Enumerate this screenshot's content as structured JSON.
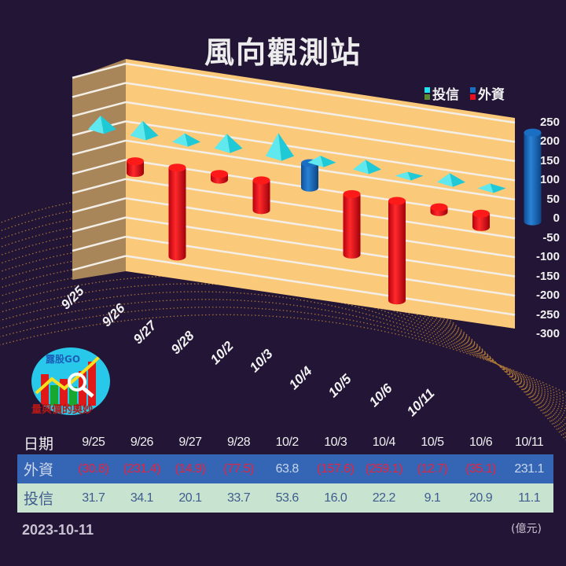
{
  "title": "風向觀測站",
  "legend": [
    {
      "label": "投信",
      "colors": [
        "#22e2ee",
        "#5a8a32"
      ]
    },
    {
      "label": "外資",
      "colors": [
        "#1a6fc4",
        "#e8101c"
      ]
    }
  ],
  "logo": {
    "name": "露股GO",
    "slogan": "量與價的奧妙"
  },
  "date": "2023-10-11",
  "unit": "(億元)",
  "table": {
    "header_label": "日期",
    "dates": [
      "9/25",
      "9/26",
      "9/27",
      "9/28",
      "10/2",
      "10/3",
      "10/4",
      "10/5",
      "10/6",
      "10/11"
    ],
    "rows": [
      {
        "label": "外資",
        "values": [
          "(30.8)",
          "(231.4)",
          "(14.9)",
          "(77.5)",
          "63.8",
          "(157.6)",
          "(259.1)",
          "(12.7)",
          "(35.1)",
          "231.1"
        ]
      },
      {
        "label": "投信",
        "values": [
          "31.7",
          "34.1",
          "20.1",
          "33.7",
          "53.6",
          "16.0",
          "22.2",
          "9.1",
          "20.9",
          "11.1"
        ]
      }
    ]
  },
  "colors": {
    "background": "#221535",
    "wall": "#fbc97a",
    "side_wall": "#a8865a",
    "foreign_positive": "#1a6fc4",
    "foreign_negative": "#e8101c",
    "trust": "#22e2ee",
    "table_foreign_row": "#3566b5",
    "table_trust_row": "#c8e3cf"
  },
  "chart_data": {
    "type": "bar",
    "title": "風向觀測站",
    "categories": [
      "9/25",
      "9/26",
      "9/27",
      "9/28",
      "10/2",
      "10/3",
      "10/4",
      "10/5",
      "10/6",
      "10/11"
    ],
    "series": [
      {
        "name": "外資",
        "shape": "cylinder",
        "values": [
          -30.8,
          -231.4,
          -14.9,
          -77.5,
          63.8,
          -157.6,
          -259.1,
          -12.7,
          -35.1,
          231.1
        ]
      },
      {
        "name": "投信",
        "shape": "pyramid",
        "values": [
          31.7,
          34.1,
          20.1,
          33.7,
          53.6,
          16.0,
          22.2,
          9.1,
          20.9,
          11.1
        ]
      }
    ],
    "yticks": [
      250,
      200,
      150,
      100,
      50,
      0,
      -50,
      -100,
      -150,
      -200,
      -250,
      -300
    ],
    "ylim": [
      -300,
      250
    ],
    "ylabel": "",
    "xlabel": "",
    "unit": "億元",
    "grid": true,
    "legend_position": "top-right"
  }
}
